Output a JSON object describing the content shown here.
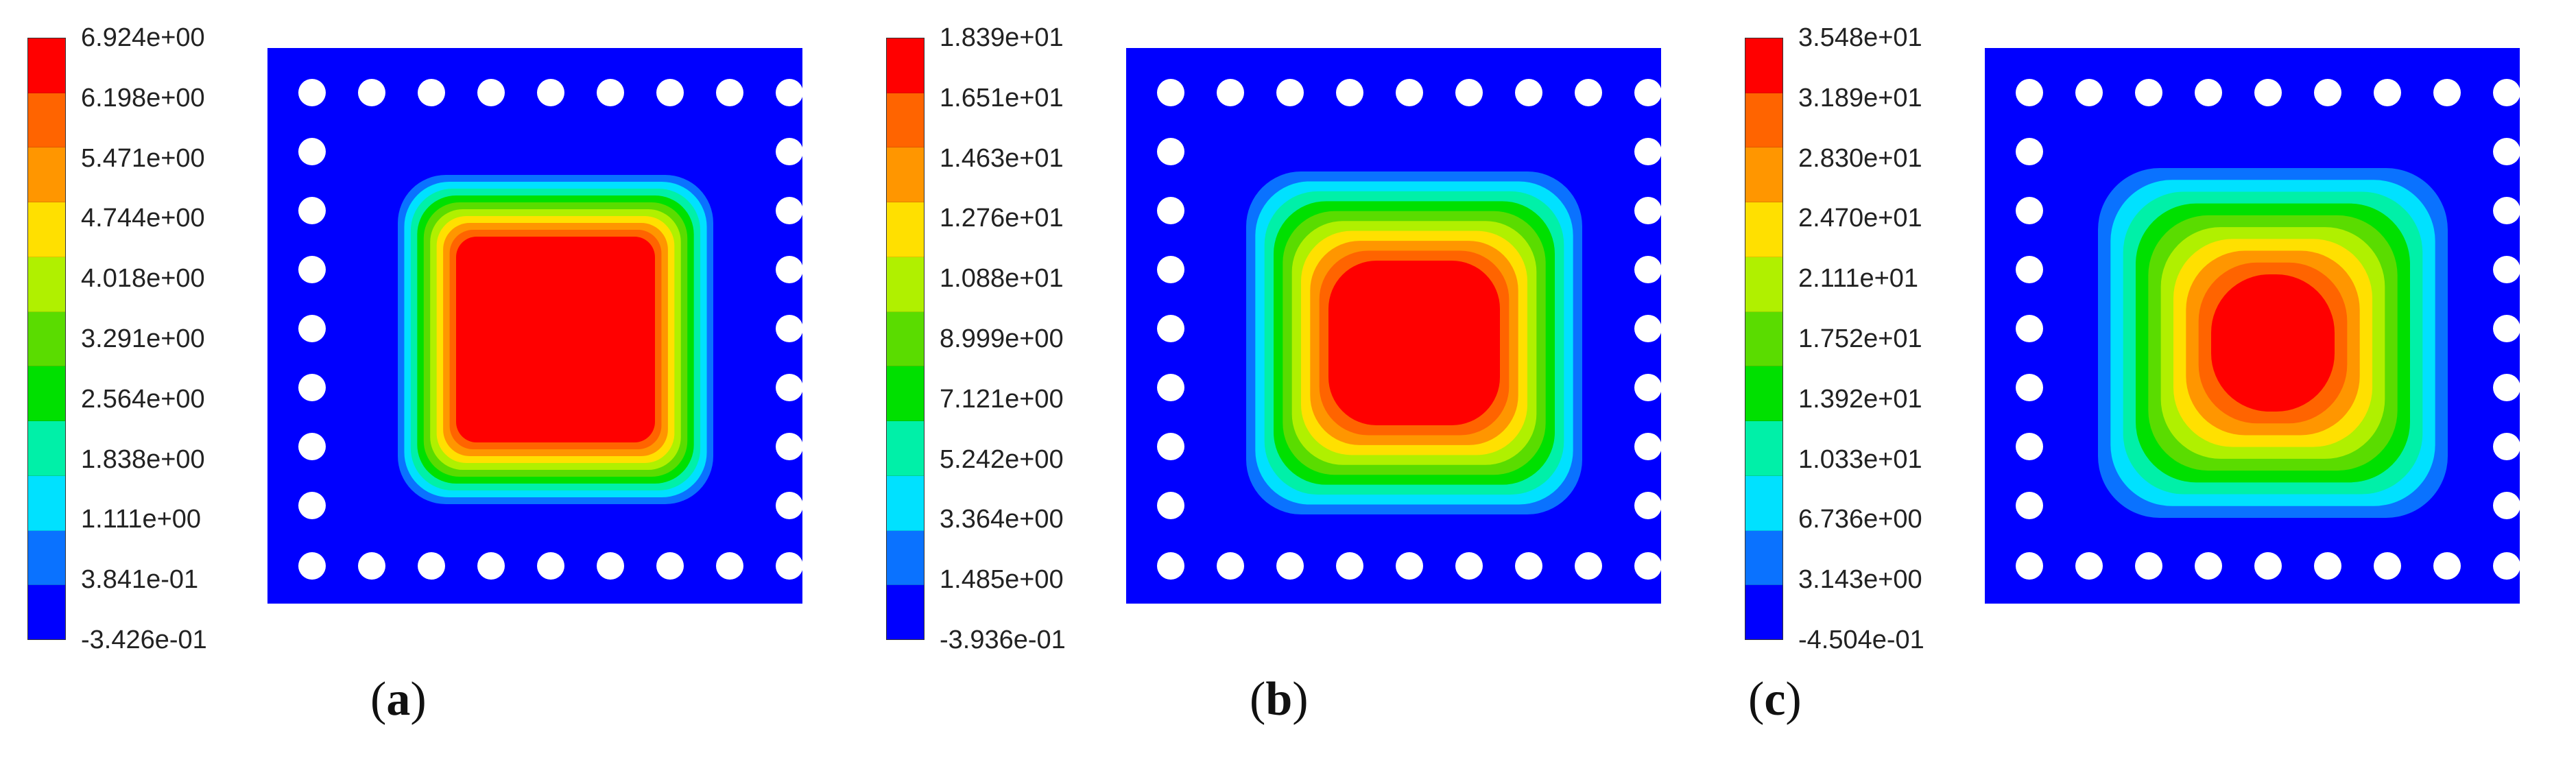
{
  "palette": [
    "#0000ff",
    "#0a72ff",
    "#00e1ff",
    "#00f0a8",
    "#00e000",
    "#5adc00",
    "#b0f000",
    "#ffe000",
    "#ff9600",
    "#ff6400",
    "#ff0000"
  ],
  "panels": [
    {
      "caption_open": "(",
      "caption_letter": "a",
      "caption_close": ")",
      "legend_labels": [
        "6.924e+00",
        "6.198e+00",
        "5.471e+00",
        "4.744e+00",
        "4.018e+00",
        "3.291e+00",
        "2.564e+00",
        "1.838e+00",
        "1.111e+00",
        "3.841e-01",
        "-3.426e-01"
      ]
    },
    {
      "caption_open": "(",
      "caption_letter": "b",
      "caption_close": ")",
      "legend_labels": [
        "1.839e+01",
        "1.651e+01",
        "1.463e+01",
        "1.276e+01",
        "1.088e+01",
        "8.999e+00",
        "7.121e+00",
        "5.242e+00",
        "3.364e+00",
        "1.485e+00",
        "-3.936e-01"
      ]
    },
    {
      "caption_open": "(",
      "caption_letter": "c",
      "caption_close": ")",
      "legend_labels": [
        "3.548e+01",
        "3.189e+01",
        "2.830e+01",
        "2.470e+01",
        "2.111e+01",
        "1.752e+01",
        "1.392e+01",
        "1.033e+01",
        "6.736e+00",
        "3.143e+00",
        "-4.504e-01"
      ]
    }
  ]
}
